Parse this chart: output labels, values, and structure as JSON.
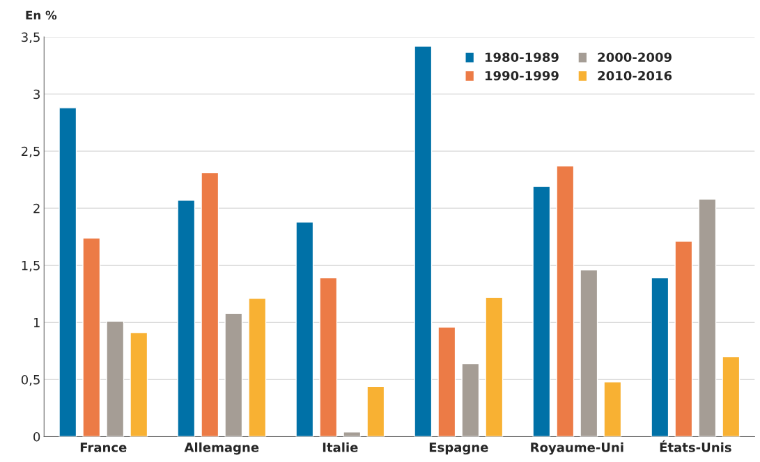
{
  "chart_data": {
    "type": "bar",
    "ylabel": "En %",
    "categories": [
      "France",
      "Allemagne",
      "Italie",
      "Espagne",
      "Royaume-Uni",
      "États-Unis"
    ],
    "series": [
      {
        "name": "1980-1989",
        "color": "#0071a7",
        "values": [
          2.88,
          2.07,
          1.88,
          3.42,
          2.19,
          1.39
        ]
      },
      {
        "name": "1990-1999",
        "color": "#ec7b46",
        "values": [
          1.74,
          2.31,
          1.39,
          0.96,
          2.37,
          1.71
        ]
      },
      {
        "name": "2000-2009",
        "color": "#a59d95",
        "values": [
          1.01,
          1.08,
          0.04,
          0.64,
          1.46,
          2.08
        ]
      },
      {
        "name": "2010-2016",
        "color": "#f8b133",
        "values": [
          0.91,
          1.21,
          0.44,
          1.22,
          0.48,
          0.7
        ]
      }
    ],
    "ylim": [
      0,
      3.5
    ],
    "yticks": [
      0,
      {
        "value": 0.5,
        "label": "0,5"
      },
      1,
      {
        "value": 1.5,
        "label": "1,5"
      },
      2,
      {
        "value": 2.5,
        "label": "2,5"
      },
      3,
      {
        "value": 3.5,
        "label": "3,5"
      }
    ],
    "grid": "y",
    "legend": "top right"
  }
}
